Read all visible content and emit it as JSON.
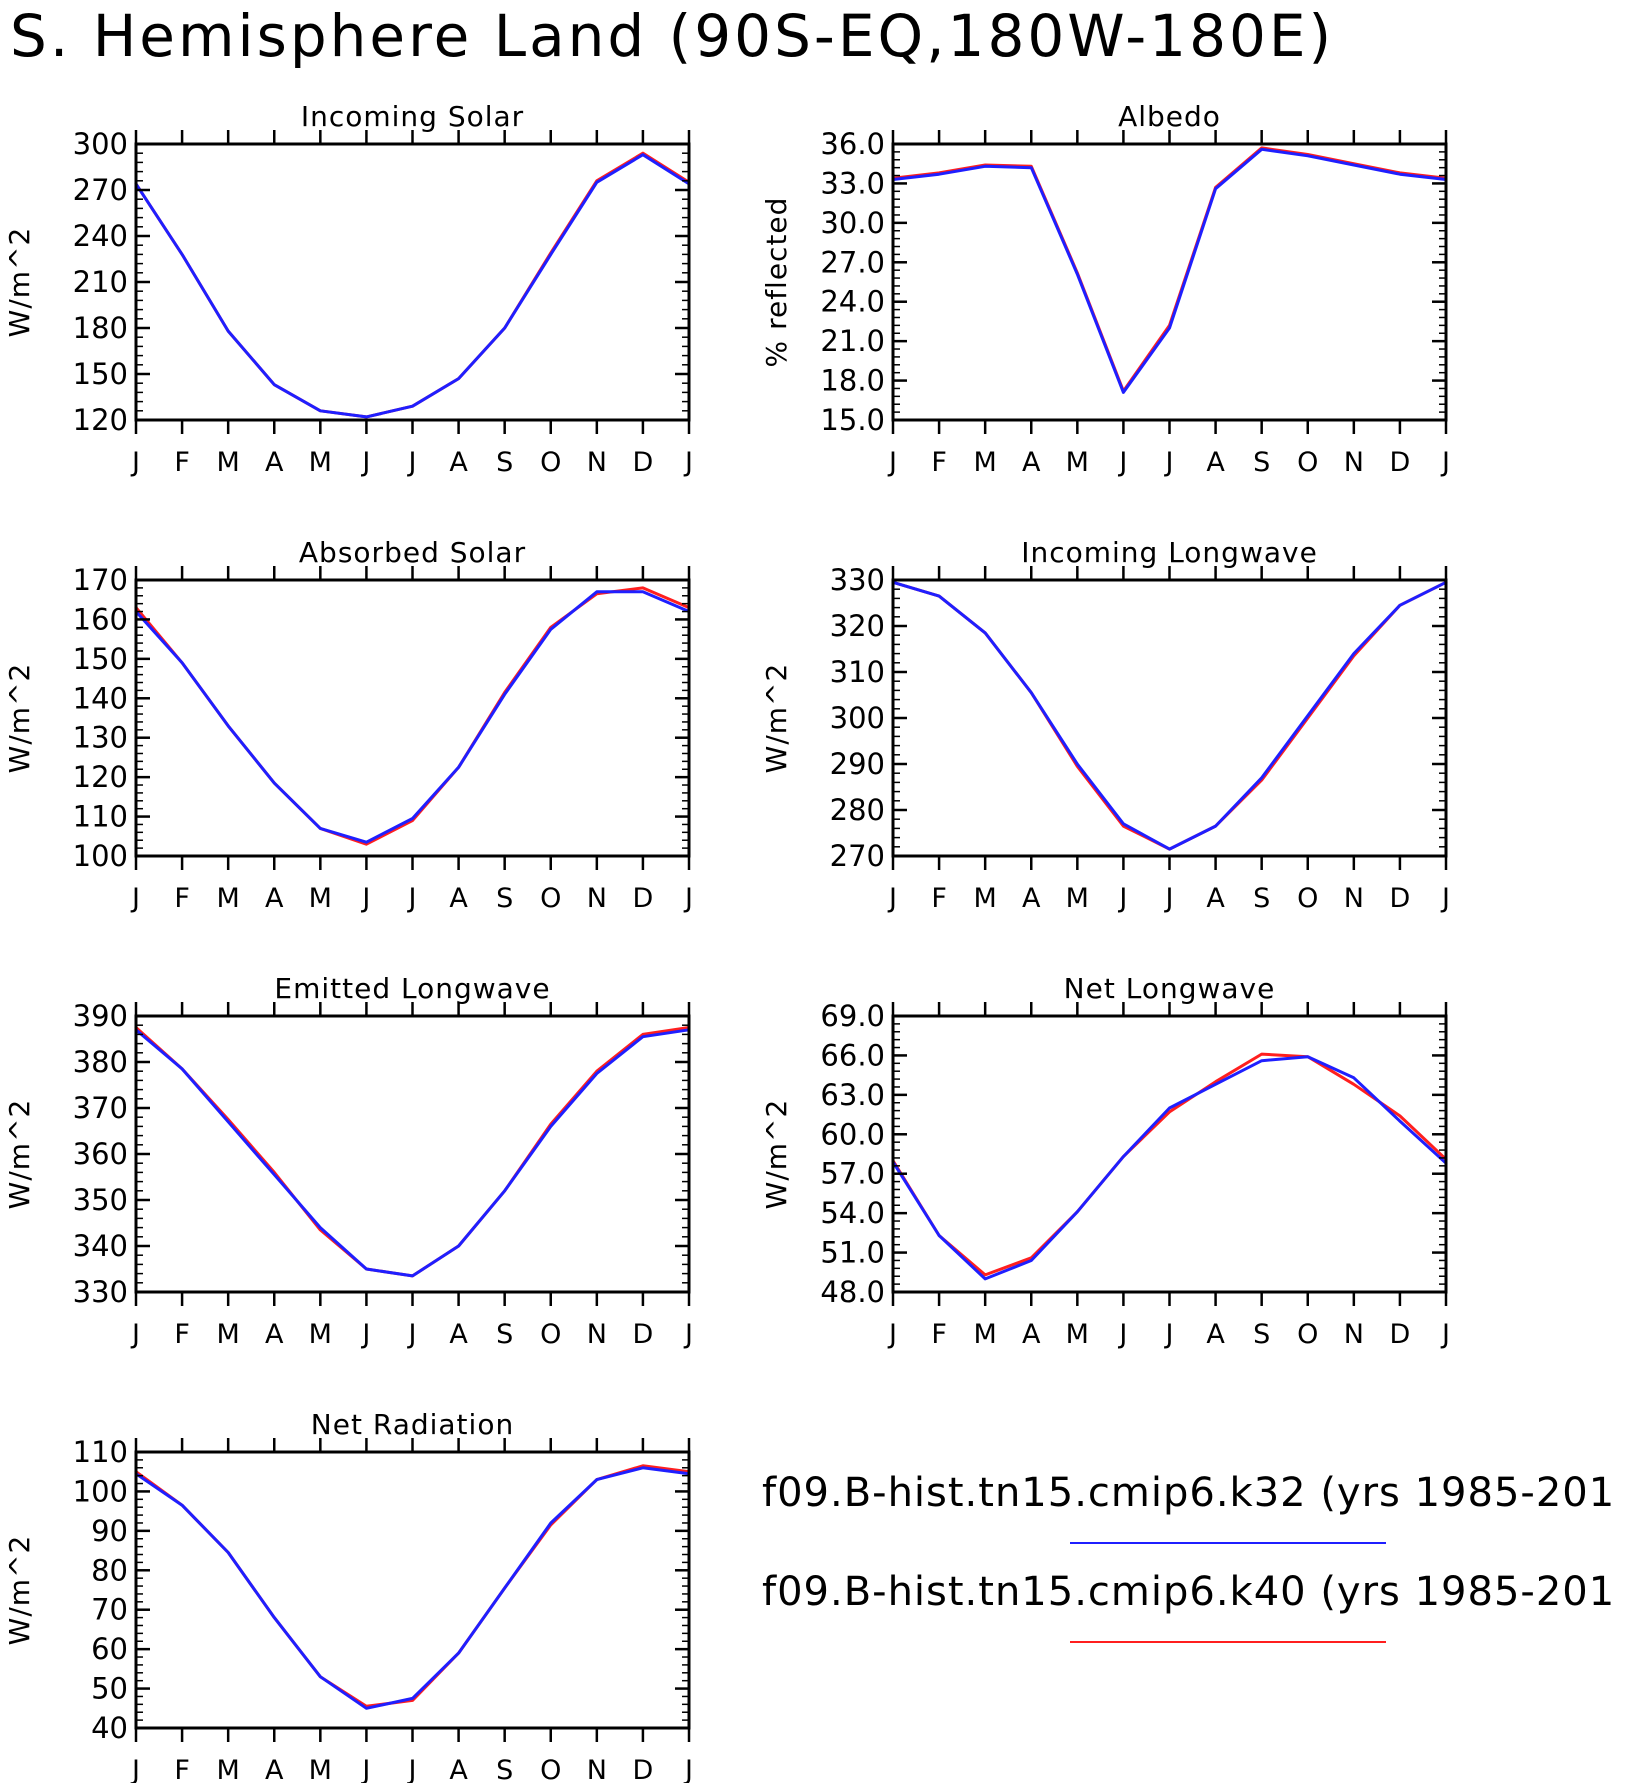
{
  "title": "S. Hemisphere Land (90S-EQ,180W-180E)",
  "colors": {
    "series_1": "#1f1fff",
    "series_2": "#ff1f1f",
    "axis": "#000000"
  },
  "legend": {
    "entries": [
      {
        "label": "f09.B-hist.tn15.cmip6.k32 (yrs 1985-201",
        "color": "#1f1fff"
      },
      {
        "label": "f09.B-hist.tn15.cmip6.k40 (yrs 1985-201",
        "color": "#ff1f1f"
      }
    ]
  },
  "chart_data": [
    {
      "type": "line",
      "title": "Incoming Solar",
      "ylabel": "W/m^2",
      "categories": [
        "J",
        "F",
        "M",
        "A",
        "M",
        "J",
        "J",
        "A",
        "S",
        "O",
        "N",
        "D",
        "J"
      ],
      "ylim": [
        120,
        300
      ],
      "yticks": [
        "120",
        "150",
        "180",
        "210",
        "240",
        "270",
        "300"
      ],
      "series": [
        {
          "values": [
            274,
            228,
            178,
            143,
            126,
            122,
            129,
            147,
            180,
            228,
            275,
            293,
            274
          ]
        },
        {
          "values": [
            274,
            228,
            178,
            143,
            126,
            122,
            129,
            147,
            180,
            229,
            276,
            294,
            275
          ]
        }
      ]
    },
    {
      "type": "line",
      "title": "Albedo",
      "ylabel": "% reflected",
      "categories": [
        "J",
        "F",
        "M",
        "A",
        "M",
        "J",
        "J",
        "A",
        "S",
        "O",
        "N",
        "D",
        "J"
      ],
      "ylim": [
        15,
        36
      ],
      "yticks": [
        "15.0",
        "18.0",
        "21.0",
        "24.0",
        "27.0",
        "30.0",
        "33.0",
        "36.0"
      ],
      "series": [
        {
          "values": [
            33.3,
            33.7,
            34.3,
            34.2,
            26.1,
            17.1,
            22.0,
            32.6,
            35.6,
            35.1,
            34.4,
            33.7,
            33.3
          ]
        },
        {
          "values": [
            33.4,
            33.8,
            34.4,
            34.3,
            26.2,
            17.2,
            22.2,
            32.7,
            35.7,
            35.2,
            34.5,
            33.8,
            33.4
          ]
        }
      ]
    },
    {
      "type": "line",
      "title": "Absorbed Solar",
      "ylabel": "W/m^2",
      "categories": [
        "J",
        "F",
        "M",
        "A",
        "M",
        "J",
        "J",
        "A",
        "S",
        "O",
        "N",
        "D",
        "J"
      ],
      "ylim": [
        100,
        170
      ],
      "yticks": [
        "100",
        "110",
        "120",
        "130",
        "140",
        "150",
        "160",
        "170"
      ],
      "series": [
        {
          "values": [
            162,
            149,
            133,
            118.5,
            107,
            103.5,
            109.5,
            122.5,
            141,
            157.5,
            167,
            167,
            162
          ]
        },
        {
          "values": [
            163,
            149,
            133,
            118.5,
            107,
            103,
            109,
            122.5,
            141.5,
            158,
            166.5,
            168,
            163
          ]
        }
      ]
    },
    {
      "type": "line",
      "title": "Incoming Longwave",
      "ylabel": "W/m^2",
      "categories": [
        "J",
        "F",
        "M",
        "A",
        "M",
        "J",
        "J",
        "A",
        "S",
        "O",
        "N",
        "D",
        "J"
      ],
      "ylim": [
        270,
        330
      ],
      "yticks": [
        "270",
        "280",
        "290",
        "300",
        "310",
        "320",
        "330"
      ],
      "series": [
        {
          "values": [
            329.5,
            326.5,
            318.5,
            305.5,
            290,
            277,
            271.5,
            276.5,
            287,
            300.5,
            314,
            324.5,
            329.5
          ]
        },
        {
          "values": [
            329.5,
            326.5,
            318.5,
            305.5,
            289.5,
            276.5,
            271.5,
            276.5,
            286.5,
            300,
            313.5,
            324.5,
            329.5
          ]
        }
      ]
    },
    {
      "type": "line",
      "title": "Emitted Longwave",
      "ylabel": "W/m^2",
      "categories": [
        "J",
        "F",
        "M",
        "A",
        "M",
        "J",
        "J",
        "A",
        "S",
        "O",
        "N",
        "D",
        "J"
      ],
      "ylim": [
        330,
        390
      ],
      "yticks": [
        "330",
        "340",
        "350",
        "360",
        "370",
        "380",
        "390"
      ],
      "series": [
        {
          "values": [
            387,
            378.5,
            367,
            355.5,
            344,
            335,
            333.5,
            340,
            352,
            366,
            377.5,
            385.5,
            387
          ]
        },
        {
          "values": [
            387.5,
            378.5,
            367.5,
            356,
            343.5,
            335,
            333.5,
            340,
            352,
            366.5,
            378,
            386,
            387.5
          ]
        }
      ]
    },
    {
      "type": "line",
      "title": "Net Longwave",
      "ylabel": "W/m^2",
      "categories": [
        "J",
        "F",
        "M",
        "A",
        "M",
        "J",
        "J",
        "A",
        "S",
        "O",
        "N",
        "D",
        "J"
      ],
      "ylim": [
        48,
        69
      ],
      "yticks": [
        "48.0",
        "51.0",
        "54.0",
        "57.0",
        "60.0",
        "63.0",
        "66.0",
        "69.0"
      ],
      "series": [
        {
          "values": [
            57.9,
            52.3,
            49.0,
            50.4,
            54.1,
            58.3,
            62.0,
            63.8,
            65.6,
            65.9,
            64.3,
            61.0,
            57.8
          ]
        },
        {
          "values": [
            58.0,
            52.3,
            49.3,
            50.6,
            54.1,
            58.3,
            61.7,
            64.0,
            66.1,
            65.9,
            63.8,
            61.4,
            58.1
          ]
        }
      ]
    },
    {
      "type": "line",
      "title": "Net Radiation",
      "ylabel": "W/m^2",
      "categories": [
        "J",
        "F",
        "M",
        "A",
        "M",
        "J",
        "J",
        "A",
        "S",
        "O",
        "N",
        "D",
        "J"
      ],
      "ylim": [
        40,
        110
      ],
      "yticks": [
        "40",
        "50",
        "60",
        "70",
        "80",
        "90",
        "100",
        "110"
      ],
      "series": [
        {
          "values": [
            104.5,
            96.5,
            84.5,
            68,
            53,
            45,
            47.5,
            59,
            75.5,
            92,
            103,
            106,
            104.5
          ]
        },
        {
          "values": [
            105,
            96.5,
            84.5,
            68,
            53,
            45.5,
            47,
            59,
            75.5,
            91.5,
            103,
            106.5,
            105
          ]
        }
      ]
    }
  ]
}
